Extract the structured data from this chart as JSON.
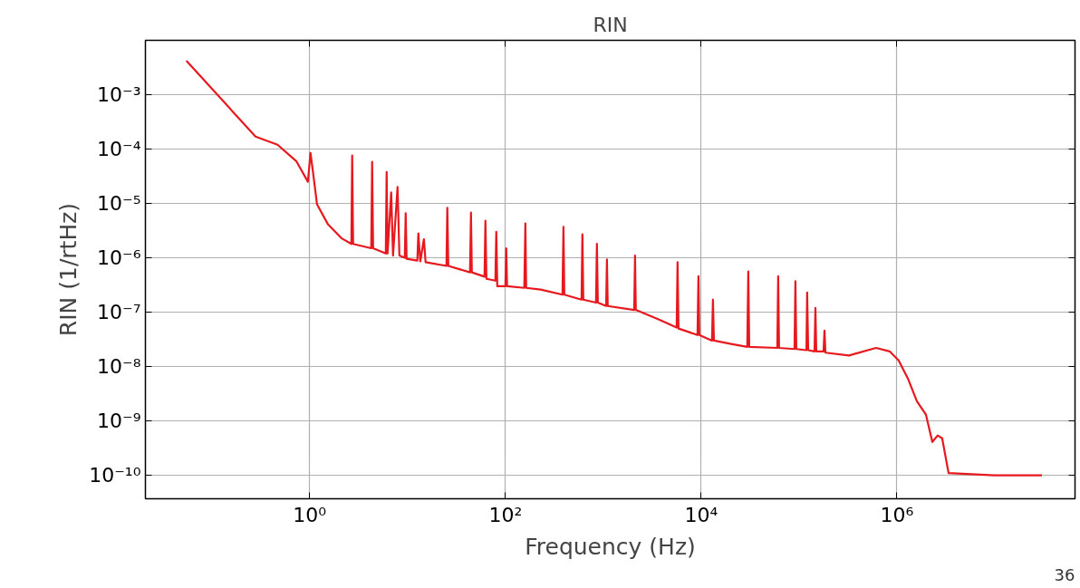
{
  "chart_data": {
    "type": "line",
    "title": "RIN",
    "xlabel": "Frequency (Hz)",
    "ylabel": "RIN (1/rtHz)",
    "log": "xy",
    "grid": true,
    "line_style": "solid",
    "marker": "none",
    "xlim": [
      0.021,
      66000000.0
    ],
    "ylim": [
      3.7e-11,
      0.01
    ],
    "xticks": [
      {
        "value": 1,
        "label": "10⁰"
      },
      {
        "value": 100,
        "label": "10²"
      },
      {
        "value": 10000,
        "label": "10⁴"
      },
      {
        "value": 1000000,
        "label": "10⁶"
      }
    ],
    "yticks": [
      {
        "value": 1e-10,
        "label": "10⁻¹⁰"
      },
      {
        "value": 1e-09,
        "label": "10⁻⁹"
      },
      {
        "value": 1e-08,
        "label": "10⁻⁸"
      },
      {
        "value": 1e-07,
        "label": "10⁻⁷"
      },
      {
        "value": 1e-06,
        "label": "10⁻⁶"
      },
      {
        "value": 1e-05,
        "label": "10⁻⁵"
      },
      {
        "value": 0.0001,
        "label": "10⁻⁴"
      },
      {
        "value": 0.001,
        "label": "10⁻³"
      }
    ],
    "annotations": [
      "36"
    ],
    "series": [
      {
        "color": "#e8191e",
        "x": [
          0.055,
          0.28,
          0.47,
          0.73,
          0.96,
          1.02,
          1.09,
          1.19,
          1.53,
          2.11,
          2.67,
          2.72,
          2.78,
          4.26,
          4.35,
          4.45,
          6.0,
          6.12,
          6.25,
          6.81,
          7.11,
          7.91,
          8.26,
          9.38,
          9.58,
          9.79,
          12.6,
          12.9,
          13.5,
          14.7,
          15.3,
          25.0,
          25.5,
          26.1,
          43.5,
          44.5,
          45.4,
          61.2,
          62.5,
          64.0,
          79,
          80.7,
          82.6,
          100,
          102,
          104,
          156,
          160,
          163,
          230,
          383,
          392,
          400,
          600,
          612,
          625,
          843,
          861,
          880,
          1070,
          1090,
          1110,
          2070,
          2110,
          2150,
          3670,
          5620,
          5740,
          5870,
          9180,
          9380,
          9580,
          12900,
          13200,
          13500,
          20200,
          29600,
          30300,
          31000,
          60000,
          61200,
          62500,
          89900,
          91800,
          93800,
          119000,
          121000,
          124000,
          144000,
          147000,
          150000,
          178000,
          182000,
          186000,
          323000,
          612000,
          843000,
          1040000,
          1290000,
          1600000,
          1980000,
          2300000,
          2610000,
          2900000,
          3370000,
          9800000,
          30300000
        ],
        "values": [
          0.0042,
          0.00017,
          0.00012,
          6e-05,
          2.5e-05,
          8.5e-05,
          3.4e-05,
          9.6e-06,
          4.2e-06,
          2.3e-06,
          1.8e-06,
          7.6e-05,
          1.8e-06,
          1.5e-06,
          5.8e-05,
          1.5e-06,
          1.2e-06,
          3.8e-05,
          1.2e-06,
          1.6e-05,
          1.1e-06,
          2e-05,
          1.1e-06,
          1e-06,
          6.6e-06,
          9.6e-07,
          8.9e-07,
          2.8e-06,
          8.6e-07,
          2.2e-06,
          8.3e-07,
          7.1e-07,
          8.3e-06,
          7.1e-07,
          5.4e-07,
          6.8e-06,
          5.4e-07,
          4.5e-07,
          4.8e-06,
          4.1e-07,
          3.8e-07,
          3e-06,
          3e-07,
          3e-07,
          1.5e-06,
          3e-07,
          2.8e-07,
          4.3e-06,
          2.8e-07,
          2.6e-07,
          2.1e-07,
          3.7e-06,
          2.1e-07,
          1.7e-07,
          2.7e-06,
          1.7e-07,
          1.5e-07,
          1.8e-06,
          1.5e-07,
          1.3e-07,
          9.3e-07,
          1.3e-07,
          1.1e-07,
          1.1e-06,
          1.1e-07,
          7.4e-08,
          5.2e-08,
          8.3e-07,
          5e-08,
          3.8e-08,
          4.6e-07,
          3.8e-08,
          3e-08,
          1.7e-07,
          3e-08,
          2.6e-08,
          2.3e-08,
          5.6e-07,
          2.3e-08,
          2.2e-08,
          4.6e-07,
          2.2e-08,
          2.1e-08,
          3.7e-07,
          2.1e-08,
          2e-08,
          2.3e-07,
          2e-08,
          1.9e-08,
          1.2e-07,
          1.9e-08,
          1.9e-08,
          4.6e-08,
          1.8e-08,
          1.6e-08,
          2.2e-08,
          1.9e-08,
          1.3e-08,
          6.1e-09,
          2.3e-09,
          1.3e-09,
          4.1e-10,
          5.4e-10,
          4.8e-10,
          1.1e-10,
          1e-10,
          1e-10
        ]
      }
    ]
  }
}
